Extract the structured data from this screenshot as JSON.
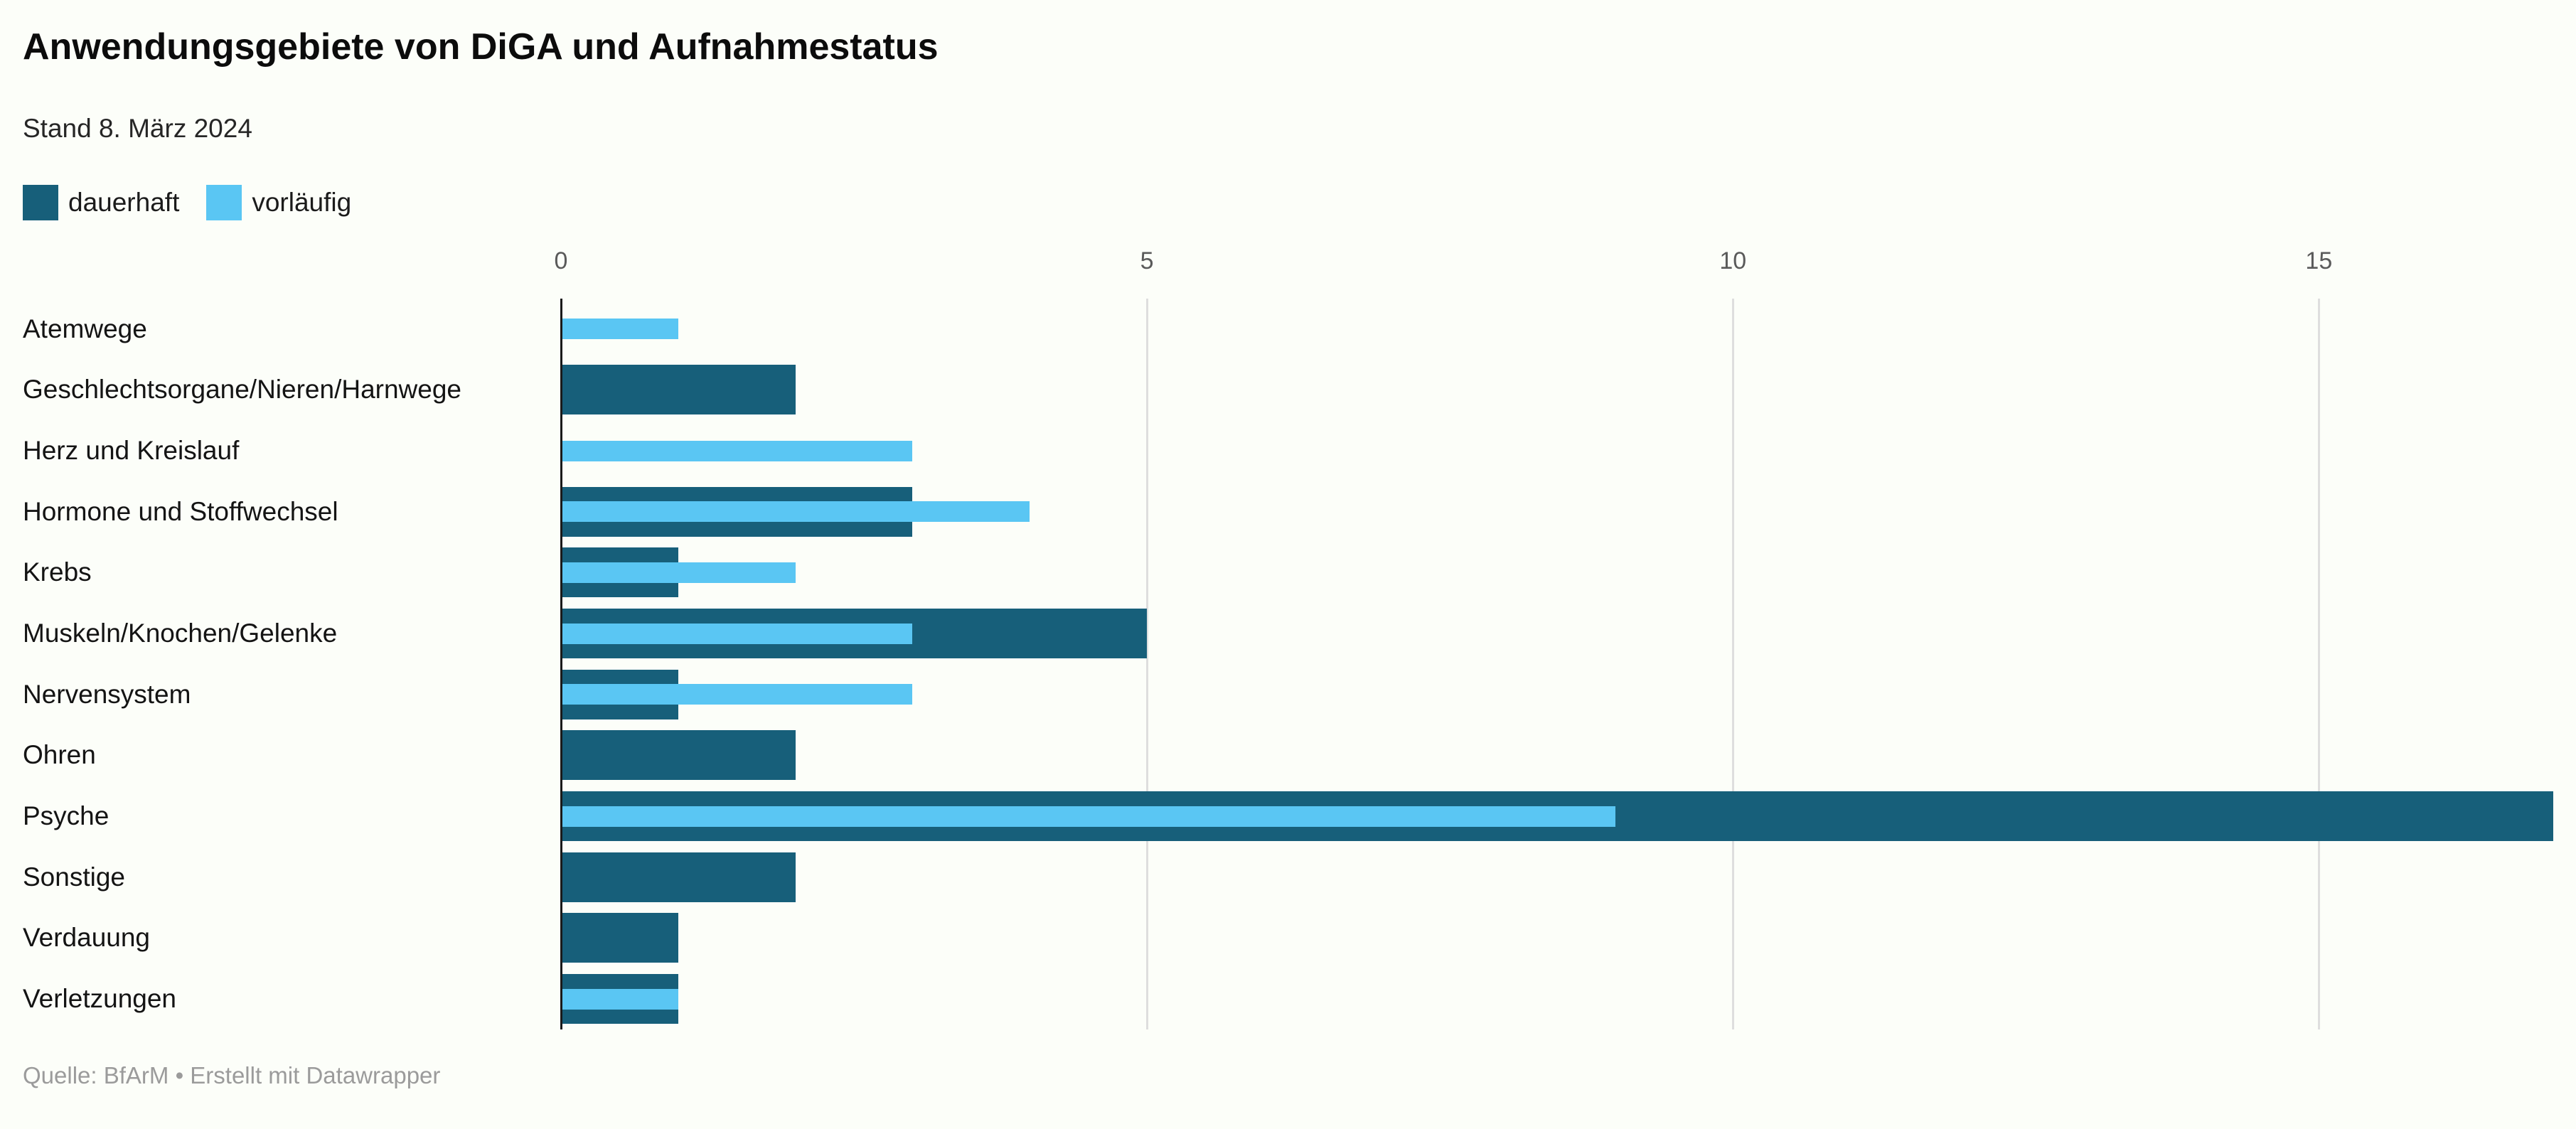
{
  "header": {
    "title": "Anwendungsgebiete von DiGA und Aufnahmestatus",
    "subtitle": "Stand 8. März 2024"
  },
  "legend": {
    "items": [
      {
        "label": "dauerhaft",
        "color": "#175f7a"
      },
      {
        "label": "vorläufig",
        "color": "#5ac6f3"
      }
    ]
  },
  "footer": {
    "text": "Quelle: BfArM • Erstellt mit Datawrapper"
  },
  "colors": {
    "dauerhaft": "#175f7a",
    "vorlaeufig": "#5ac6f3",
    "gridline": "#dedede",
    "axis": "#1a1a1a",
    "background": "#fcfef9"
  },
  "chart_data": {
    "type": "bar",
    "orientation": "horizontal",
    "title": "Anwendungsgebiete von DiGA und Aufnahmestatus",
    "subtitle": "Stand 8. März 2024",
    "source": "Quelle: BfArM",
    "attribution": "Erstellt mit Datawrapper",
    "categories": [
      "Atemwege",
      "Geschlechtsorgane/Nieren/Harnwege",
      "Herz und Kreislauf",
      "Hormone und Stoffwechsel",
      "Krebs",
      "Muskeln/Knochen/Gelenke",
      "Nervensystem",
      "Ohren",
      "Psyche",
      "Sonstige",
      "Verdauung",
      "Verletzungen"
    ],
    "series": [
      {
        "name": "dauerhaft",
        "color": "#175f7a",
        "values": [
          0,
          2,
          0,
          3,
          1,
          5,
          1,
          2,
          17,
          2,
          1,
          1
        ]
      },
      {
        "name": "vorläufig",
        "color": "#5ac6f3",
        "values": [
          1,
          0,
          3,
          4,
          2,
          3,
          3,
          0,
          9,
          0,
          0,
          1
        ]
      }
    ],
    "xlim": [
      0,
      17
    ],
    "ticks": [
      0,
      5,
      10,
      15
    ],
    "grid": "vertical",
    "legend_position": "top-left"
  }
}
